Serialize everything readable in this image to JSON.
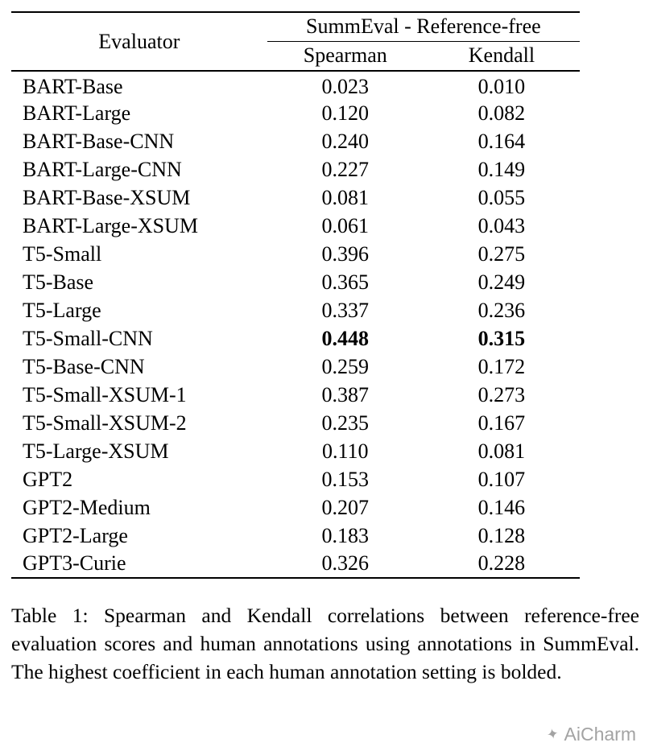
{
  "table": {
    "header": {
      "evaluator": "Evaluator",
      "group": "SummEval - Reference-free",
      "col1": "Spearman",
      "col2": "Kendall"
    },
    "rows": [
      {
        "evaluator": "BART-Base",
        "spearman": "0.023",
        "kendall": "0.010",
        "bold": false
      },
      {
        "evaluator": "BART-Large",
        "spearman": "0.120",
        "kendall": "0.082",
        "bold": false
      },
      {
        "evaluator": "BART-Base-CNN",
        "spearman": "0.240",
        "kendall": "0.164",
        "bold": false
      },
      {
        "evaluator": "BART-Large-CNN",
        "spearman": "0.227",
        "kendall": "0.149",
        "bold": false
      },
      {
        "evaluator": "BART-Base-XSUM",
        "spearman": "0.081",
        "kendall": "0.055",
        "bold": false
      },
      {
        "evaluator": "BART-Large-XSUM",
        "spearman": "0.061",
        "kendall": "0.043",
        "bold": false
      },
      {
        "evaluator": "T5-Small",
        "spearman": "0.396",
        "kendall": "0.275",
        "bold": false
      },
      {
        "evaluator": "T5-Base",
        "spearman": "0.365",
        "kendall": "0.249",
        "bold": false
      },
      {
        "evaluator": "T5-Large",
        "spearman": "0.337",
        "kendall": "0.236",
        "bold": false
      },
      {
        "evaluator": "T5-Small-CNN",
        "spearman": "0.448",
        "kendall": "0.315",
        "bold": true
      },
      {
        "evaluator": "T5-Base-CNN",
        "spearman": "0.259",
        "kendall": "0.172",
        "bold": false
      },
      {
        "evaluator": "T5-Small-XSUM-1",
        "spearman": "0.387",
        "kendall": "0.273",
        "bold": false
      },
      {
        "evaluator": "T5-Small-XSUM-2",
        "spearman": "0.235",
        "kendall": "0.167",
        "bold": false
      },
      {
        "evaluator": "T5-Large-XSUM",
        "spearman": "0.110",
        "kendall": "0.081",
        "bold": false
      },
      {
        "evaluator": "GPT2",
        "spearman": "0.153",
        "kendall": "0.107",
        "bold": false
      },
      {
        "evaluator": "GPT2-Medium",
        "spearman": "0.207",
        "kendall": "0.146",
        "bold": false
      },
      {
        "evaluator": "GPT2-Large",
        "spearman": "0.183",
        "kendall": "0.128",
        "bold": false
      },
      {
        "evaluator": "GPT3-Curie",
        "spearman": "0.326",
        "kendall": "0.228",
        "bold": false
      }
    ]
  },
  "caption": "Table 1: Spearman and Kendall correlations between reference-free evaluation scores and human annotations using annotations in SummEval. The highest coefficient in each human annotation setting is bolded.",
  "watermark": {
    "label": "AiCharm",
    "icon": "sparkle-icon"
  },
  "colors": {
    "text": "#000000",
    "background": "#ffffff",
    "watermark": "#a3a3a3"
  }
}
